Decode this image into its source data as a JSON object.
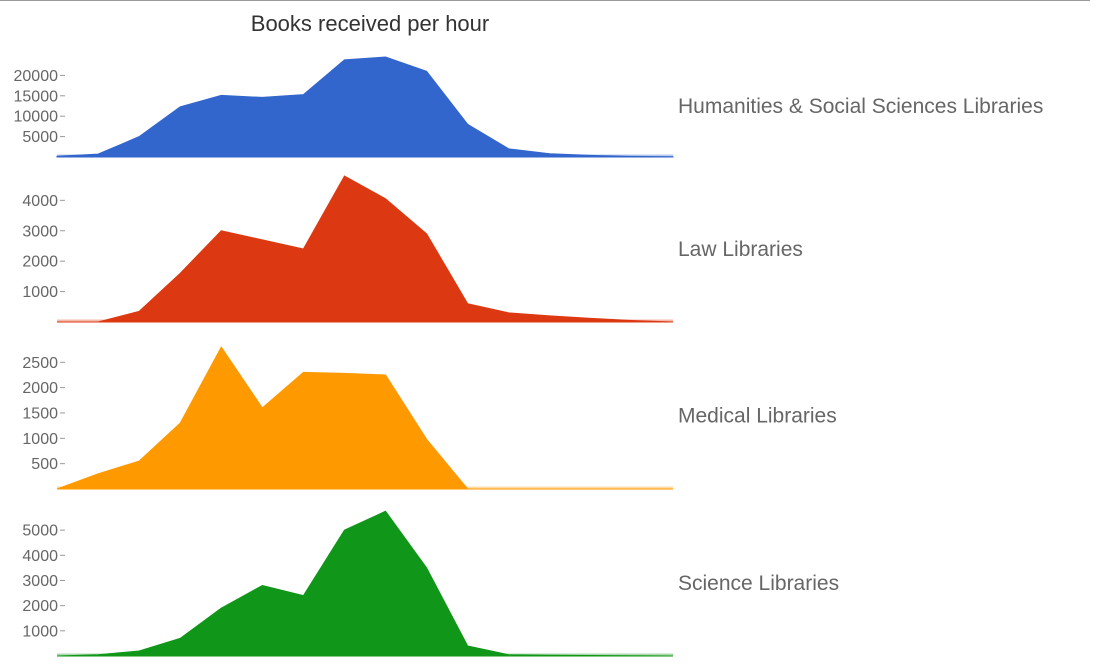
{
  "chart_data": {
    "type": "area",
    "title": "Books received per hour",
    "xlabel": "",
    "ylabel": "",
    "grid": false,
    "legend": "right",
    "x": [
      0,
      1,
      2,
      3,
      4,
      5,
      6,
      7,
      8,
      9,
      10,
      11,
      12,
      13,
      14,
      15
    ],
    "series": [
      {
        "name": "Humanities & Social Sciences Libraries",
        "color": "#3366cc",
        "ylim": [
          0,
          25000
        ],
        "yticks": [
          5000,
          10000,
          15000,
          20000
        ],
        "values": [
          200,
          700,
          5000,
          12300,
          15100,
          14600,
          15300,
          23800,
          24500,
          21000,
          8000,
          2000,
          800,
          400,
          150,
          50
        ]
      },
      {
        "name": "Law Libraries",
        "color": "#dc3912",
        "ylim": [
          0,
          4800
        ],
        "yticks": [
          1000,
          2000,
          3000,
          4000
        ],
        "values": [
          0,
          0,
          350,
          1600,
          3000,
          2700,
          2400,
          4800,
          4050,
          2900,
          600,
          300,
          200,
          120,
          50,
          0
        ],
        "trailing_start": 1,
        "trailing_end": 14
      },
      {
        "name": "Medical Libraries",
        "color": "#ff9900",
        "ylim": [
          0,
          2900
        ],
        "yticks": [
          500,
          1000,
          1500,
          2000,
          2500
        ],
        "values": [
          0,
          300,
          550,
          1300,
          2800,
          1600,
          2300,
          2280,
          2250,
          980,
          0,
          0,
          0,
          0,
          0,
          0
        ],
        "trailing_start": 0,
        "trailing_end": 10
      },
      {
        "name": "Science Libraries",
        "color": "#109618",
        "ylim": [
          0,
          5800
        ],
        "yticks": [
          1000,
          2000,
          3000,
          4000,
          5000
        ],
        "values": [
          0,
          50,
          200,
          700,
          1900,
          2800,
          2400,
          5000,
          5750,
          3500,
          400,
          50,
          30,
          20,
          10,
          0
        ],
        "trailing_start": 0,
        "trailing_end": 13
      }
    ]
  }
}
